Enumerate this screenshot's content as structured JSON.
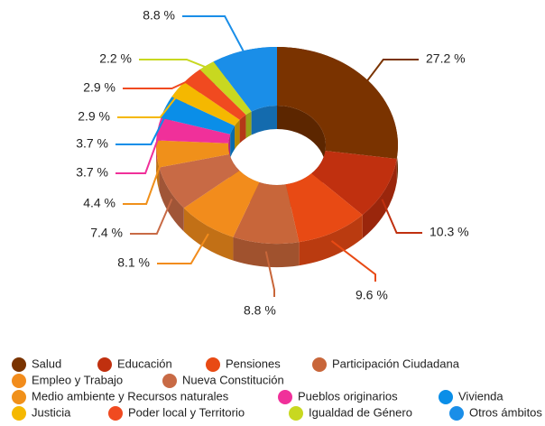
{
  "chart_data": {
    "type": "donut3d",
    "categories": [
      "Salud",
      "Educación",
      "Pensiones",
      "Participación Ciudadana",
      "Empleo y Trabajo",
      "Nueva Constitución",
      "Medio ambiente y Recursos naturales",
      "Pueblos originarios",
      "Vivienda",
      "Justicia",
      "Poder local y Territorio",
      "Igualdad de Género",
      "Otros ámbitos"
    ],
    "values": [
      27.2,
      10.3,
      9.6,
      8.8,
      8.1,
      7.4,
      4.4,
      3.7,
      3.7,
      2.9,
      2.9,
      2.2,
      8.8
    ],
    "value_labels": [
      "27.2 %",
      "10.3 %",
      "9.6 %",
      "8.8 %",
      "8.1 %",
      "7.4 %",
      "4.4 %",
      "3.7 %",
      "3.7 %",
      "2.9 %",
      "2.9 %",
      "2.2 %",
      "8.8 %"
    ],
    "colors": [
      "#7a3300",
      "#c0300f",
      "#e84a14",
      "#c8663a",
      "#f28c1c",
      "#c86a45",
      "#f0901a",
      "#f0309a",
      "#0a8ee8",
      "#f5b800",
      "#f04a20",
      "#c8d820",
      "#1a8ee8"
    ],
    "legend": "bottom"
  }
}
